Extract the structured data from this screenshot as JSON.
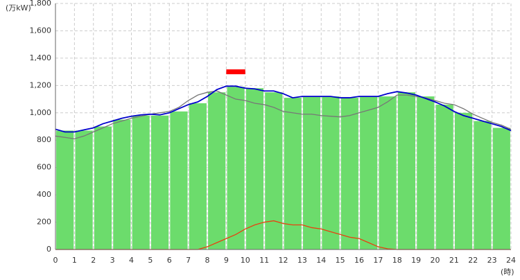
{
  "chart_data": {
    "type": "bar-line",
    "y_label": "(万kW)",
    "x_label": "(時)",
    "xlim": [
      0,
      24
    ],
    "xticks": [
      0,
      1,
      2,
      3,
      4,
      5,
      6,
      7,
      8,
      9,
      10,
      11,
      12,
      13,
      14,
      15,
      16,
      17,
      18,
      19,
      20,
      21,
      22,
      23,
      24
    ],
    "ylim": [
      0,
      1800
    ],
    "yticks": [
      0,
      200,
      400,
      600,
      800,
      {
        "value": 1000,
        "label": "1,000"
      },
      {
        "value": 1200,
        "label": "1,200"
      },
      {
        "value": 1400,
        "label": "1,400"
      },
      {
        "value": 1600,
        "label": "1,600"
      },
      {
        "value": 1800,
        "label": "1,800"
      }
    ],
    "grid": true,
    "bars": {
      "color": "#6cdc6c",
      "bins": [
        0,
        1,
        2,
        3,
        4,
        5,
        6,
        7,
        8,
        9,
        10,
        11,
        12,
        13,
        14,
        15,
        16,
        17,
        18,
        19,
        20,
        21,
        22,
        23,
        24
      ],
      "values": [
        870,
        870,
        900,
        950,
        980,
        980,
        1010,
        1070,
        1150,
        1190,
        1180,
        1150,
        1110,
        1120,
        1120,
        1110,
        1120,
        1120,
        1150,
        1120,
        1060,
        1000,
        940,
        890
      ]
    },
    "x": [
      0,
      0.5,
      1,
      1.5,
      2,
      2.5,
      3,
      3.5,
      4,
      4.5,
      5,
      5.5,
      6,
      6.5,
      7,
      7.5,
      8,
      8.5,
      9,
      9.5,
      10,
      10.5,
      11,
      11.5,
      12,
      12.5,
      13,
      13.5,
      14,
      14.5,
      15,
      15.5,
      16,
      16.5,
      17,
      17.5,
      18,
      18.5,
      19,
      19.5,
      20,
      20.5,
      21,
      21.5,
      22,
      22.5,
      23,
      23.5,
      24
    ],
    "lines": [
      {
        "color": "#777777",
        "values": [
          830,
          820,
          810,
          830,
          860,
          890,
          920,
          940,
          960,
          975,
          990,
          1000,
          1010,
          1040,
          1090,
          1130,
          1150,
          1160,
          1130,
          1100,
          1090,
          1070,
          1060,
          1040,
          1010,
          1000,
          990,
          990,
          980,
          975,
          970,
          980,
          1000,
          1020,
          1040,
          1080,
          1130,
          1130,
          1120,
          1110,
          1090,
          1070,
          1060,
          1030,
          990,
          960,
          930,
          910,
          880
        ]
      },
      {
        "color": "#0000cc",
        "values": [
          880,
          860,
          860,
          875,
          890,
          920,
          940,
          960,
          975,
          985,
          990,
          985,
          1000,
          1030,
          1060,
          1080,
          1120,
          1170,
          1195,
          1195,
          1180,
          1175,
          1160,
          1160,
          1140,
          1110,
          1120,
          1120,
          1120,
          1120,
          1110,
          1110,
          1120,
          1120,
          1120,
          1140,
          1155,
          1145,
          1130,
          1105,
          1080,
          1050,
          1010,
          980,
          960,
          940,
          920,
          900,
          870
        ]
      },
      {
        "color": "#e84010",
        "values": [
          0,
          0,
          0,
          0,
          0,
          0,
          0,
          0,
          0,
          0,
          0,
          0,
          0,
          0,
          0,
          0,
          20,
          50,
          80,
          110,
          150,
          180,
          200,
          210,
          190,
          180,
          180,
          160,
          150,
          130,
          110,
          90,
          80,
          50,
          20,
          5,
          0,
          0,
          0,
          0,
          0,
          0,
          0,
          0,
          0,
          0,
          0,
          0,
          0
        ]
      }
    ],
    "peak_marker": {
      "x": [
        9,
        10
      ],
      "value": 1300,
      "color": "#ff0000"
    }
  }
}
